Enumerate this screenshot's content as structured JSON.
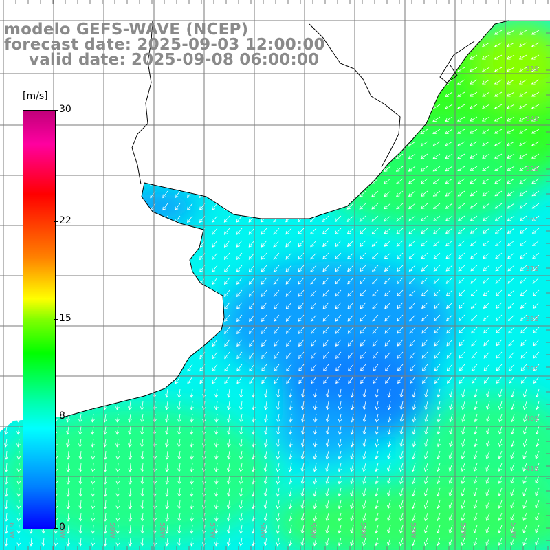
{
  "title": {
    "line1": "modelo GEFS-WAVE (NCEP)",
    "line2": "forecast date: 2025-09-03 12:00:00",
    "line3": "valid date: 2025-09-08 06:00:00"
  },
  "colorbar": {
    "unit": "[m/s]",
    "ticks": [
      "30",
      "22",
      "15",
      "8",
      "0"
    ],
    "tick_values": [
      30,
      22,
      15,
      8,
      0
    ],
    "range": [
      0,
      30
    ],
    "colors": [
      "#0000ff",
      "#0080ff",
      "#00ffff",
      "#00ff00",
      "#ffff00",
      "#ff8000",
      "#ff0000",
      "#c0007a"
    ]
  },
  "map": {
    "lon_labels": [
      "61W",
      "60W",
      "59W",
      "58W",
      "57W",
      "56W",
      "55W",
      "54W",
      "53W",
      "52W",
      "51W"
    ],
    "lat_labels": [
      "33S",
      "34S",
      "35S",
      "36S",
      "37S",
      "38S",
      "39S",
      "40S",
      "41S"
    ],
    "land_color": "#ffffff",
    "grid_color": "#7a7a7a",
    "coast_color": "#000000",
    "arrow_color": "#ffffff"
  }
}
